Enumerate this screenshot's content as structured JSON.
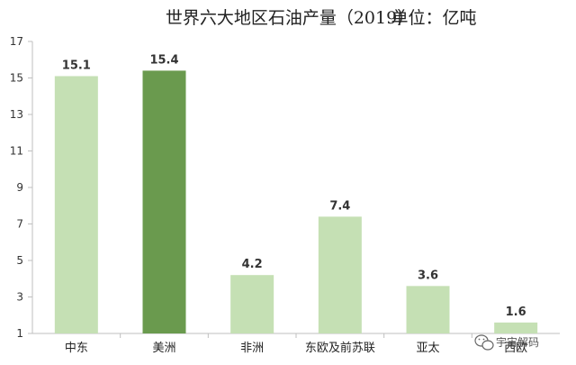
{
  "chart_data": {
    "type": "bar",
    "title": "世界六大地区石油产量（2019）",
    "subtitle": "单位：亿吨",
    "categories": [
      "中东",
      "美洲",
      "非洲",
      "东欧及前苏联",
      "亚太",
      "西欧"
    ],
    "values": [
      15.1,
      15.4,
      4.2,
      7.4,
      3.6,
      1.6
    ],
    "value_labels": [
      "15.1",
      "15.4",
      "4.2",
      "7.4",
      "3.6",
      "1.6"
    ],
    "ylim": [
      1,
      17
    ],
    "yticks": [
      1,
      3,
      5,
      7,
      9,
      11,
      13,
      15,
      17
    ],
    "grid": false,
    "colors": {
      "bar": "#c5e0b4",
      "highlight": "#6a9a4e",
      "axis": "#bfbfbf"
    },
    "highlight_index": 1
  },
  "watermark": {
    "icon": "wechat-icon",
    "text": "宇宙解码"
  }
}
